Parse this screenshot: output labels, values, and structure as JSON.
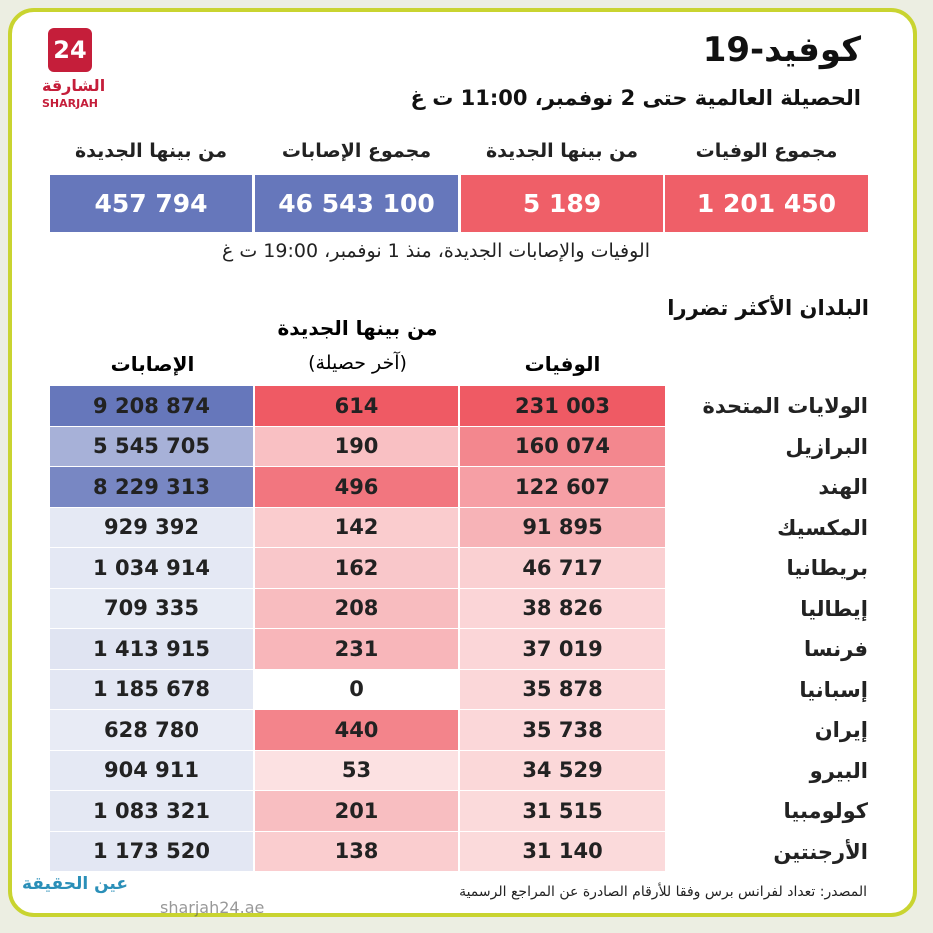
{
  "logo": {
    "number": "24",
    "arabic": "الشارقة",
    "latin": "SHARJAH"
  },
  "header": {
    "title": "كوفيد-19",
    "subtitle": "الحصيلة العالمية حتى 2 نوفمبر، 11:00 ت غ"
  },
  "summary": {
    "items": [
      {
        "label": "مجموع الوفيات",
        "value": "1 201 450"
      },
      {
        "label": "من بينها الجديدة",
        "value": "5 189"
      },
      {
        "label": "مجموع الإصابات",
        "value": "46 543 100"
      },
      {
        "label": "من بينها الجديدة",
        "value": "457 794"
      }
    ],
    "note": "الوفيات والإصابات الجديدة، منذ 1 نوفمبر، 19:00 ت غ"
  },
  "table": {
    "title": "البلدان الأكثر تضررا",
    "columns": {
      "deaths": "الوفيات",
      "new": "من بينها الجديدة",
      "new_note": "(آخر حصيلة)",
      "cases": "الإصابات"
    },
    "rows": [
      [
        "الولايات المتحدة",
        "231 003",
        "614",
        "9 208 874"
      ],
      [
        "البرازيل",
        "160 074",
        "190",
        "5 545 705"
      ],
      [
        "الهند",
        "122 607",
        "496",
        "8 229 313"
      ],
      [
        "المكسيك",
        "91 895",
        "142",
        "929 392"
      ],
      [
        "بريطانيا",
        "46 717",
        "162",
        "1 034 914"
      ],
      [
        "إيطاليا",
        "38 826",
        "208",
        "709 335"
      ],
      [
        "فرنسا",
        "37 019",
        "231",
        "1 413 915"
      ],
      [
        "إسبانيا",
        "35 878",
        "0",
        "1 185 678"
      ],
      [
        "إيران",
        "35 738",
        "440",
        "628 780"
      ],
      [
        "البيرو",
        "34 529",
        "53",
        "904 911"
      ],
      [
        "كولومبيا",
        "31 515",
        "201",
        "1 083 321"
      ],
      [
        "الأرجنتين",
        "31 140",
        "138",
        "1 173 520"
      ]
    ]
  },
  "source": "المصدر: تعداد لفرانس برس وفقا للأرقام الصادرة عن المراجع الرسمية",
  "watermark": {
    "brand": "عين الحقيقة",
    "site": "sharjah24.ae"
  }
}
